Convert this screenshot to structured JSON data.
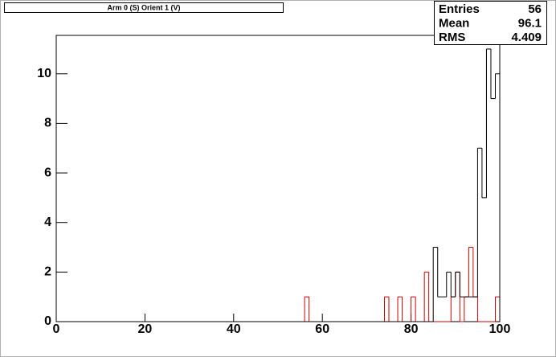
{
  "chart_data": {
    "type": "histogram",
    "title": "Arm 0 (S) Orient 1 (V)",
    "bins": [
      0,
      1,
      2,
      3,
      4,
      5,
      6,
      7,
      8,
      9,
      10,
      11,
      12,
      13,
      14,
      15,
      16,
      17,
      18,
      19,
      20,
      21,
      22,
      23,
      24,
      25,
      26,
      27,
      28,
      29,
      30,
      31,
      32,
      33,
      34,
      35,
      36,
      37,
      38,
      39,
      40,
      41,
      42,
      43,
      44,
      45,
      46,
      47,
      48,
      49,
      50,
      51,
      52,
      53,
      54,
      55,
      56,
      57,
      58,
      59,
      60,
      61,
      62,
      63,
      64,
      65,
      66,
      67,
      68,
      69,
      70,
      71,
      72,
      73,
      74,
      75,
      76,
      77,
      78,
      79,
      80,
      81,
      82,
      83,
      84,
      85,
      86,
      87,
      88,
      89,
      90,
      91,
      92,
      93,
      94,
      95,
      96,
      97,
      98,
      99,
      100
    ],
    "series": [
      {
        "color": "#cc0000",
        "values": [
          0,
          0,
          0,
          0,
          0,
          0,
          0,
          0,
          0,
          0,
          0,
          0,
          0,
          0,
          0,
          0,
          0,
          0,
          0,
          0,
          0,
          0,
          0,
          0,
          0,
          0,
          0,
          0,
          0,
          0,
          0,
          0,
          0,
          0,
          0,
          0,
          0,
          0,
          0,
          0,
          0,
          0,
          0,
          0,
          0,
          0,
          0,
          0,
          0,
          0,
          0,
          0,
          0,
          0,
          0,
          0,
          1,
          0,
          0,
          0,
          0,
          0,
          0,
          0,
          0,
          0,
          0,
          0,
          0,
          0,
          0,
          0,
          0,
          0,
          1,
          0,
          0,
          1,
          0,
          0,
          1,
          0,
          0,
          2,
          0,
          0,
          0,
          0,
          0,
          1,
          2,
          0,
          1,
          3,
          1,
          0,
          0,
          0,
          0,
          1
        ]
      },
      {
        "color": "#000000",
        "values": [
          0,
          0,
          0,
          0,
          0,
          0,
          0,
          0,
          0,
          0,
          0,
          0,
          0,
          0,
          0,
          0,
          0,
          0,
          0,
          0,
          0,
          0,
          0,
          0,
          0,
          0,
          0,
          0,
          0,
          0,
          0,
          0,
          0,
          0,
          0,
          0,
          0,
          0,
          0,
          0,
          0,
          0,
          0,
          0,
          0,
          0,
          0,
          0,
          0,
          0,
          0,
          0,
          0,
          0,
          0,
          0,
          0,
          0,
          0,
          0,
          0,
          0,
          0,
          0,
          0,
          0,
          0,
          0,
          0,
          0,
          0,
          0,
          0,
          0,
          0,
          0,
          0,
          0,
          0,
          0,
          0,
          0,
          0,
          0,
          0,
          3,
          1,
          1,
          2,
          1,
          2,
          1,
          1,
          1,
          1,
          7,
          5,
          11,
          9,
          10
        ]
      }
    ],
    "xlim": [
      0,
      100
    ],
    "xticks": [
      0,
      20,
      40,
      60,
      80,
      100
    ],
    "ylim": [
      0,
      11.55
    ],
    "yticks": [
      0,
      2,
      4,
      6,
      8,
      10
    ],
    "stats": [
      {
        "label": "Entries",
        "value": 56
      },
      {
        "label": "Mean",
        "value": 96.1
      },
      {
        "label": "RMS",
        "value": 4.409
      }
    ]
  }
}
